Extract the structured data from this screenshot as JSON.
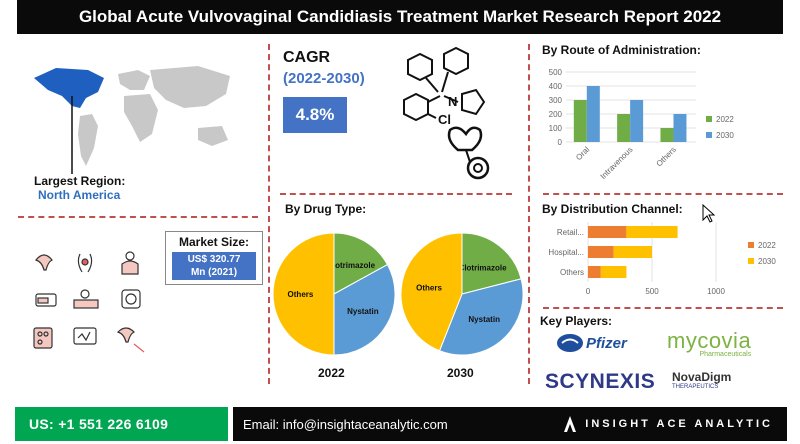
{
  "header": {
    "title": "Global Acute Vulvovaginal Candidiasis Treatment Market Research Report 2022"
  },
  "region": {
    "label": "Largest Region:",
    "value": "North America"
  },
  "cagr": {
    "label": "CAGR",
    "period": "(2022-2030)",
    "value": "4.8%"
  },
  "market": {
    "label": "Market Size:",
    "value_line1": "US$ 320.77",
    "value_line2": "Mn (2021)"
  },
  "molecule": {
    "cl_label": "Cl",
    "n_label": "N"
  },
  "drug_type": {
    "title": "By Drug Type:"
  },
  "route": {
    "title": "By Route of Administration:"
  },
  "distribution": {
    "title": "By Distribution Channel:"
  },
  "players": {
    "title": "Key Players:",
    "pfizer": "Pfizer",
    "mycovia": "mycovia",
    "mycovia_sub": "Pharmaceuticals",
    "scynexis": "SCYNEXIS",
    "novadigm": "NovaDigm",
    "novadigm_sub": "THERAPEUTICS"
  },
  "footer": {
    "phone": "US: +1 551 226 6109",
    "email": "Email: info@insightaceanalytic.com",
    "brand": "INSIGHT ACE ANALYTIC"
  },
  "colors": {
    "accent_red": "#c0504d",
    "blue_box": "#4472c4",
    "green": "#00a651",
    "pie_yellow": "#ffc000",
    "pie_green": "#70ad47",
    "pie_blue": "#5b9bd5",
    "orange": "#ed7d31"
  },
  "chart_data": [
    {
      "type": "pie",
      "title": "2022",
      "slices": [
        {
          "label": "Others",
          "value": 50
        },
        {
          "label": "Clotrimazole",
          "value": 17
        },
        {
          "label": "Nystatin",
          "value": 33
        }
      ]
    },
    {
      "type": "pie",
      "title": "2030",
      "slices": [
        {
          "label": "Others",
          "value": 44
        },
        {
          "label": "Clotrimazole",
          "value": 21
        },
        {
          "label": "Nystatin",
          "value": 35
        }
      ]
    },
    {
      "type": "bar",
      "categories": [
        "Oral",
        "Intravenous",
        "Others"
      ],
      "series": [
        {
          "name": "2022",
          "values": [
            300,
            200,
            100
          ]
        },
        {
          "name": "2030",
          "values": [
            400,
            300,
            200
          ]
        }
      ],
      "ylim": [
        0,
        500
      ],
      "yticks": [
        "0",
        "100",
        "200",
        "300",
        "400",
        "500"
      ],
      "legend": "right"
    },
    {
      "type": "bar",
      "orientation": "horizontal",
      "stacked": true,
      "categories": [
        "Retail...",
        "Hospital...",
        "Others"
      ],
      "series": [
        {
          "name": "2022",
          "values": [
            300,
            200,
            100
          ]
        },
        {
          "name": "2030",
          "values": [
            400,
            300,
            200
          ]
        }
      ],
      "xlim": [
        0,
        1000
      ],
      "xticks": [
        "0",
        "500",
        "1000"
      ],
      "legend": "right"
    }
  ]
}
